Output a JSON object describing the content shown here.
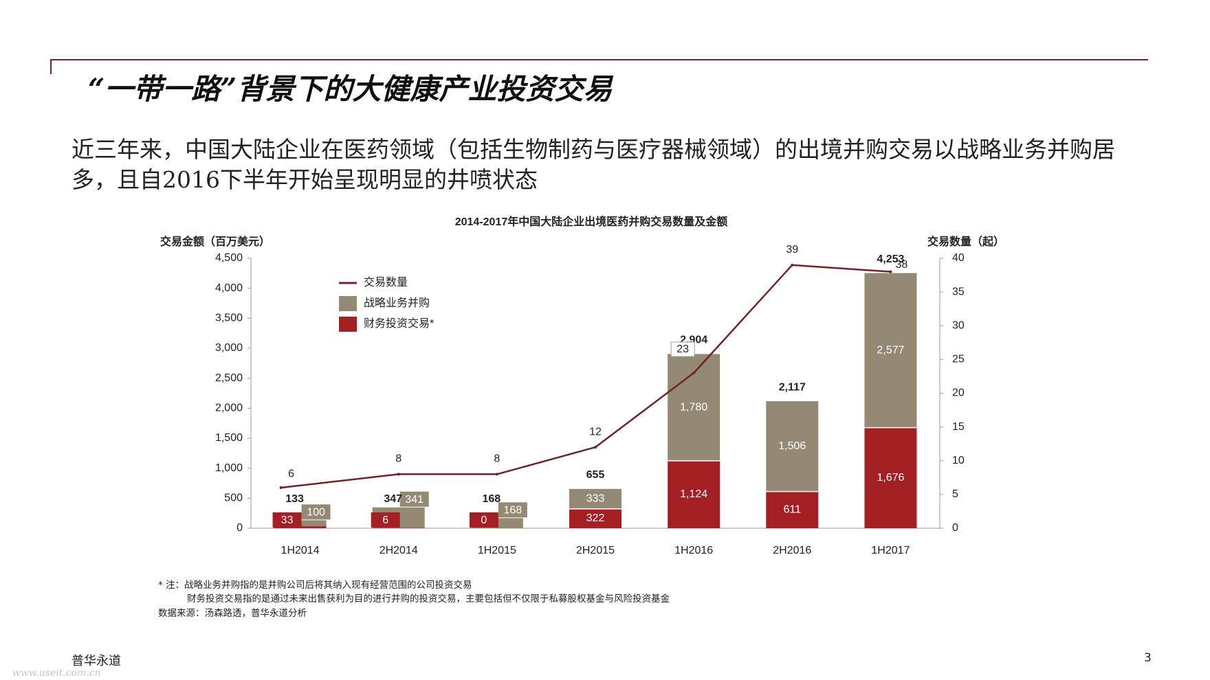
{
  "slide": {
    "title": "“一带一路”背景下的大健康产业投资交易",
    "subtitle": "近三年来，中国大陆企业在医药领域（包括生物制药与医疗器械领域）的出境并购交易以战略业务并购居多，且自2016下半年开始呈现明显的井喷状态"
  },
  "chart_data": {
    "type": "bar",
    "title": "2014-2017年中国大陆企业出境医药并购交易数量及金额",
    "ylabel_left": "交易金额（百万美元）",
    "ylabel_right": "交易数量（起）",
    "ylim_left": [
      0,
      4500
    ],
    "ylim_right": [
      0,
      40
    ],
    "left_ticks": [
      "4,500",
      "4,000",
      "3,500",
      "3,000",
      "2,500",
      "2,000",
      "1,500",
      "1,000",
      "500",
      "0"
    ],
    "right_ticks": [
      "40",
      "35",
      "30",
      "25",
      "20",
      "15",
      "10",
      "5",
      "0"
    ],
    "categories": [
      "1H2014",
      "2H2014",
      "1H2015",
      "2H2015",
      "1H2016",
      "2H2016",
      "1H2017"
    ],
    "series": [
      {
        "name": "财务投资交易*",
        "kind": "bar",
        "color": "#a31f23",
        "values": [
          33,
          6,
          0,
          322,
          1124,
          611,
          1676
        ],
        "labels": [
          "33",
          "6",
          "0",
          "322",
          "1,124",
          "611",
          "1,676"
        ]
      },
      {
        "name": "战略业务并购",
        "kind": "bar",
        "color": "#948a74",
        "values": [
          100,
          341,
          168,
          333,
          1780,
          1506,
          2577
        ],
        "labels": [
          "100",
          "341",
          "168",
          "333",
          "1,780",
          "1,506",
          "2,577"
        ]
      },
      {
        "name": "交易数量",
        "kind": "line",
        "color": "#6e2424",
        "axis": "right",
        "values": [
          6,
          8,
          8,
          12,
          23,
          39,
          38
        ],
        "labels": [
          "6",
          "8",
          "8",
          "12",
          "23",
          "39",
          "38"
        ]
      }
    ],
    "totals": [
      "133",
      "347",
      "168",
      "655",
      "2,904",
      "2,117",
      "4,253"
    ],
    "legend": [
      "交易数量",
      "战略业务并购",
      "财务投资交易*"
    ],
    "legend_position": "top-left"
  },
  "notes": {
    "note1": "* 注：战略业务并购指的是并购公司后将其纳入现有经营范围的公司投资交易",
    "note2": "财务投资交易指的是通过未来出售获利为目的进行并购的投资交易，主要包括但不仅限于私募股权基金与风险投资基金",
    "source": "数据来源：汤森路透，普华永道分析"
  },
  "footer": {
    "brand": "普华永道",
    "page": "3",
    "watermark": "www.useit.com.cn"
  }
}
